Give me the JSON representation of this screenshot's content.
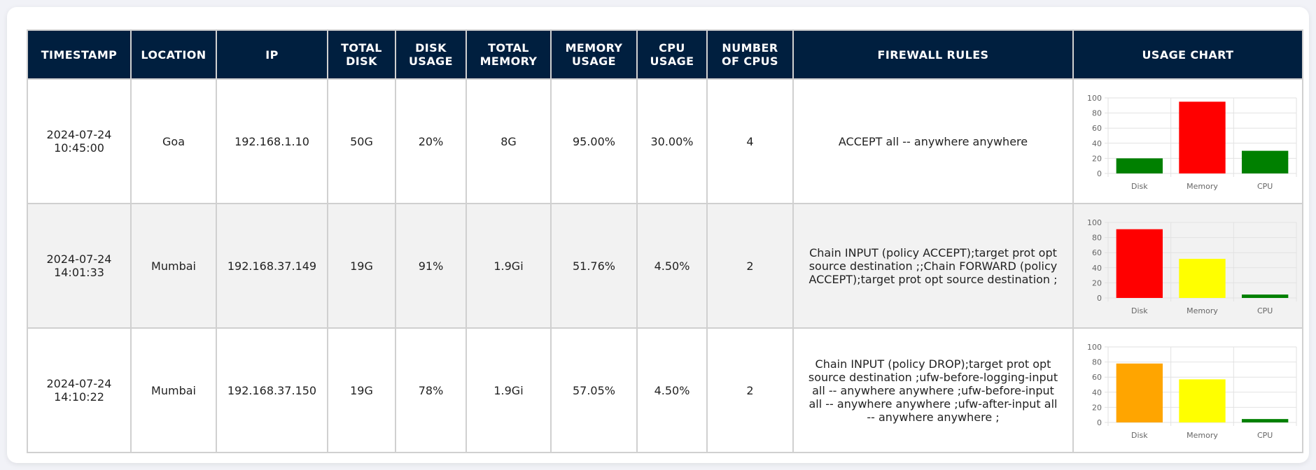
{
  "headers": {
    "timestamp": [
      "TIMESTAMP"
    ],
    "location": [
      "LOCATION"
    ],
    "ip": [
      "IP"
    ],
    "total_disk": [
      "TOTAL",
      "DISK"
    ],
    "disk_usage": [
      "DISK",
      "USAGE"
    ],
    "total_memory": [
      "TOTAL",
      "MEMORY"
    ],
    "memory_usage": [
      "MEMORY",
      "USAGE"
    ],
    "cpu_usage": [
      "CPU",
      "USAGE"
    ],
    "number_of_cpus": [
      "NUMBER",
      "OF CPUS"
    ],
    "firewall_rules": [
      "FIREWALL RULES"
    ],
    "usage_chart": [
      "USAGE CHART"
    ]
  },
  "rows": [
    {
      "timestamp_date": "2024-07-24",
      "timestamp_time": "10:45:00",
      "location": "Goa",
      "ip": "192.168.1.10",
      "total_disk": "50G",
      "disk_usage": "20%",
      "total_memory": "8G",
      "memory_usage": "95.00%",
      "cpu_usage": "30.00%",
      "number_of_cpus": "4",
      "firewall_rules": "ACCEPT all -- anywhere anywhere"
    },
    {
      "timestamp_date": "2024-07-24",
      "timestamp_time": "14:01:33",
      "location": "Mumbai",
      "ip": "192.168.37.149",
      "total_disk": "19G",
      "disk_usage": "91%",
      "total_memory": "1.9Gi",
      "memory_usage": "51.76%",
      "cpu_usage": "4.50%",
      "number_of_cpus": "2",
      "firewall_rules": "Chain INPUT (policy ACCEPT);target prot opt source destination ;;Chain FORWARD (policy ACCEPT);target prot opt source destination ;"
    },
    {
      "timestamp_date": "2024-07-24",
      "timestamp_time": "14:10:22",
      "location": "Mumbai",
      "ip": "192.168.37.150",
      "total_disk": "19G",
      "disk_usage": "78%",
      "total_memory": "1.9Gi",
      "memory_usage": "57.05%",
      "cpu_usage": "4.50%",
      "number_of_cpus": "2",
      "firewall_rules": "Chain INPUT (policy DROP);target prot opt source destination ;ufw-before-logging-input all -- anywhere anywhere ;ufw-before-input all -- anywhere anywhere ;ufw-after-input all -- anywhere anywhere ;"
    }
  ],
  "chart_data": [
    {
      "type": "bar",
      "categories": [
        "Disk",
        "Memory",
        "CPU"
      ],
      "values": [
        20,
        95,
        30
      ],
      "colors": [
        "#008000",
        "#ff0000",
        "#008000"
      ],
      "ylim": [
        0,
        100
      ],
      "yticks": [
        0,
        20,
        40,
        60,
        80,
        100
      ],
      "grid": true,
      "title": "",
      "xlabel": "",
      "ylabel": ""
    },
    {
      "type": "bar",
      "categories": [
        "Disk",
        "Memory",
        "CPU"
      ],
      "values": [
        91,
        51.76,
        4.5
      ],
      "colors": [
        "#ff0000",
        "#ffff00",
        "#008000"
      ],
      "ylim": [
        0,
        100
      ],
      "yticks": [
        0,
        20,
        40,
        60,
        80,
        100
      ],
      "grid": true,
      "title": "",
      "xlabel": "",
      "ylabel": ""
    },
    {
      "type": "bar",
      "categories": [
        "Disk",
        "Memory",
        "CPU"
      ],
      "values": [
        78,
        57.05,
        4.5
      ],
      "colors": [
        "#ffa500",
        "#ffff00",
        "#008000"
      ],
      "ylim": [
        0,
        100
      ],
      "yticks": [
        0,
        20,
        40,
        60,
        80,
        100
      ],
      "grid": true,
      "title": "",
      "xlabel": "",
      "ylabel": ""
    }
  ]
}
